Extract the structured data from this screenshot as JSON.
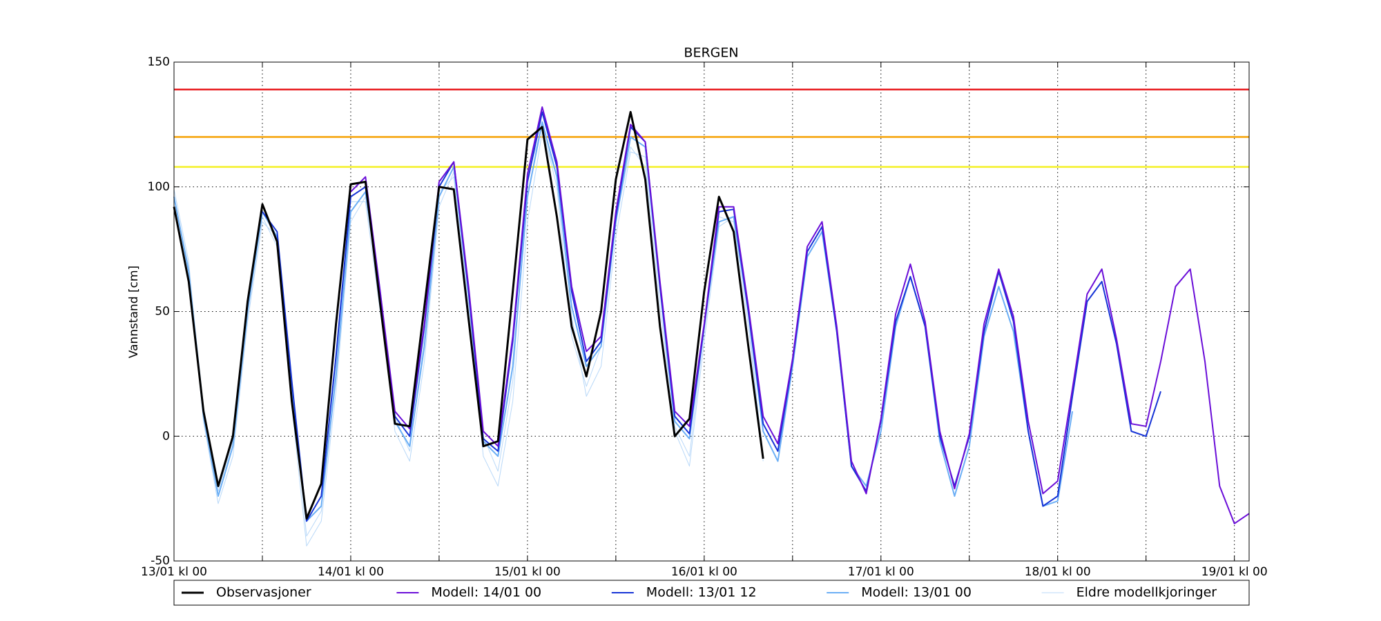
{
  "chart_data": {
    "type": "line",
    "title": "BERGEN",
    "y_label": "Vannstand [cm]",
    "x": [
      0,
      2,
      4,
      6,
      8,
      10,
      12,
      14,
      16,
      18,
      20,
      22,
      24,
      26,
      28,
      30,
      32,
      34,
      36,
      38,
      40,
      42,
      44,
      46,
      48,
      50,
      52,
      54,
      56,
      58,
      60,
      62,
      64,
      66,
      68,
      70,
      72,
      74,
      76,
      78,
      80,
      82,
      84,
      86,
      88,
      90,
      92,
      94,
      96,
      98,
      100,
      102,
      104,
      106,
      108,
      110,
      112,
      114,
      116,
      118,
      120,
      122,
      124,
      126,
      128,
      130,
      132,
      134,
      136,
      138,
      140,
      142,
      144,
      146
    ],
    "xlim": [
      0,
      146
    ],
    "xticks": [
      {
        "value": 0,
        "label": "13/01 kl 00"
      },
      {
        "value": 24,
        "label": "14/01 kl 00"
      },
      {
        "value": 48,
        "label": "15/01 kl 00"
      },
      {
        "value": 72,
        "label": "16/01 kl 00"
      },
      {
        "value": 96,
        "label": "17/01 kl 00"
      },
      {
        "value": 120,
        "label": "18/01 kl 00"
      },
      {
        "value": 144,
        "label": "19/01 kl 00"
      }
    ],
    "xminor": [
      12,
      36,
      60,
      84,
      108,
      132
    ],
    "ylim": [
      -50,
      150
    ],
    "yticks": [
      -50,
      0,
      50,
      100,
      150
    ],
    "grid": true,
    "legend": "below",
    "thresholds": [
      {
        "value": 139,
        "color": "#e8191c"
      },
      {
        "value": 120,
        "color": "#f5a000"
      },
      {
        "value": 108,
        "color": "#f4f020"
      }
    ],
    "series": [
      {
        "name": "Observasjoner",
        "color": "#000000",
        "width": 3,
        "values": [
          92,
          62,
          10,
          -20,
          0,
          54,
          93,
          78,
          14,
          -33,
          -19,
          45,
          101,
          102,
          53,
          5,
          4,
          52,
          100,
          99,
          47,
          -4,
          -2,
          58,
          119,
          124,
          88,
          44,
          24,
          50,
          103,
          130,
          103,
          44,
          0,
          7,
          58,
          96,
          82,
          36,
          -9,
          null,
          null,
          null,
          null,
          null,
          null,
          null,
          null,
          null,
          null,
          null,
          null,
          null,
          null,
          null,
          null,
          null,
          null,
          null,
          null,
          null,
          null,
          null,
          null,
          null,
          null,
          null,
          null,
          null,
          null,
          null,
          null,
          null
        ]
      },
      {
        "name": "Modell: 14/01 00",
        "color": "#6a0dd8",
        "width": 2,
        "values": [
          null,
          null,
          null,
          null,
          null,
          null,
          null,
          null,
          null,
          null,
          null,
          null,
          98,
          104,
          58,
          10,
          3,
          45,
          102,
          110,
          60,
          2,
          -4,
          40,
          105,
          132,
          110,
          60,
          34,
          40,
          90,
          125,
          118,
          62,
          10,
          4,
          45,
          92,
          92,
          52,
          8,
          -3,
          31,
          76,
          86,
          44,
          -10,
          -23,
          7,
          49,
          69,
          46,
          2,
          -21,
          1,
          45,
          67,
          48,
          6,
          -23,
          -18,
          19,
          57,
          67,
          39,
          5,
          4,
          30,
          60,
          67,
          30,
          -20,
          -35,
          -31
        ]
      },
      {
        "name": "Modell: 13/01 12",
        "color": "#1533d6",
        "width": 2,
        "values": [
          null,
          null,
          null,
          null,
          null,
          null,
          90,
          82,
          22,
          -34,
          -24,
          32,
          96,
          100,
          56,
          8,
          0,
          44,
          100,
          110,
          58,
          -1,
          -6,
          38,
          102,
          130,
          108,
          58,
          30,
          38,
          88,
          124,
          118,
          60,
          8,
          1,
          44,
          90,
          91,
          50,
          5,
          -6,
          30,
          74,
          84,
          42,
          -12,
          -22,
          6,
          46,
          64,
          44,
          0,
          -20,
          0,
          42,
          66,
          46,
          2,
          -28,
          -24,
          16,
          54,
          62,
          37,
          2,
          0,
          18,
          null,
          null,
          null,
          null,
          null,
          null
        ]
      },
      {
        "name": "Modell: 13/01 00",
        "color": "#6aaef5",
        "width": 2,
        "values": [
          96,
          66,
          8,
          -24,
          -4,
          50,
          90,
          80,
          18,
          -34,
          -28,
          24,
          90,
          98,
          58,
          6,
          -4,
          36,
          96,
          108,
          58,
          -2,
          -8,
          28,
          96,
          126,
          104,
          52,
          28,
          36,
          86,
          120,
          116,
          60,
          6,
          -1,
          44,
          86,
          88,
          50,
          2,
          -10,
          28,
          72,
          82,
          42,
          -12,
          -20,
          2,
          44,
          64,
          44,
          -2,
          -24,
          -4,
          40,
          60,
          42,
          2,
          -28,
          -26,
          10,
          null,
          null,
          null,
          null,
          null,
          null,
          null,
          null,
          null,
          null,
          null,
          null
        ]
      },
      {
        "name": "Eldre modellkjoringer",
        "color": "#b8d8f8",
        "width": 1,
        "runs": [
          [
            99,
            70,
            6,
            -27,
            -8,
            46,
            86,
            80,
            12,
            -44,
            -34,
            18,
            86,
            96,
            56,
            2,
            -10,
            30,
            92,
            106,
            54,
            -8,
            -20,
            14,
            86,
            122,
            104,
            48,
            16,
            28,
            80,
            114,
            112,
            58,
            2,
            -12,
            38,
            84,
            88,
            48,
            -10,
            null,
            null,
            null,
            null,
            null,
            null,
            null,
            null,
            null,
            null,
            null,
            null,
            null,
            null,
            null,
            null,
            null,
            null,
            null,
            null,
            null,
            null,
            null,
            null,
            null,
            null,
            null,
            null,
            null,
            null,
            null,
            null,
            null
          ],
          [
            95,
            68,
            12,
            -22,
            -2,
            52,
            88,
            76,
            20,
            -40,
            -30,
            28,
            94,
            94,
            50,
            8,
            -6,
            40,
            98,
            104,
            52,
            0,
            -14,
            22,
            104,
            124,
            100,
            40,
            20,
            36,
            86,
            116,
            108,
            52,
            4,
            -8,
            42,
            88,
            86,
            44,
            -8,
            null,
            null,
            null,
            null,
            null,
            null,
            null,
            null,
            null,
            null,
            null,
            null,
            null,
            null,
            null,
            null,
            null,
            null,
            null,
            null,
            null,
            null,
            null,
            null,
            null,
            null,
            null,
            null,
            null,
            null,
            null,
            null,
            null
          ]
        ]
      }
    ]
  }
}
